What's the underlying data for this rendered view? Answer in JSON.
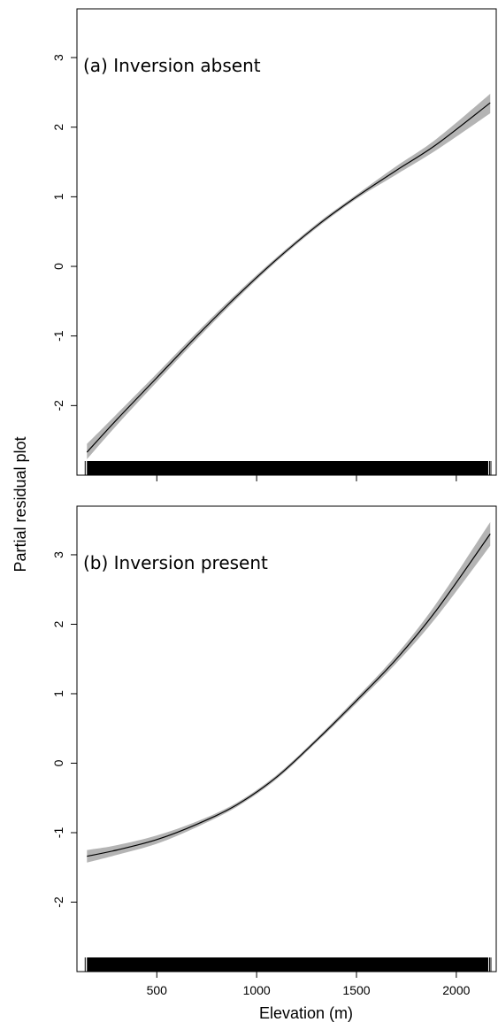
{
  "figure": {
    "ylabel": "Partial residual plot",
    "xlabel": "Elevation (m)"
  },
  "chart_data": [
    {
      "type": "line",
      "panel_label": "(a) Inversion absent",
      "x": [
        150,
        300,
        500,
        700,
        900,
        1100,
        1300,
        1500,
        1700,
        1900,
        2170
      ],
      "y": [
        -2.67,
        -2.2,
        -1.6,
        -1.0,
        -0.43,
        0.1,
        0.58,
        1.0,
        1.38,
        1.75,
        2.35
      ],
      "ci_lower": [
        -2.77,
        -2.28,
        -1.66,
        -1.05,
        -0.47,
        0.07,
        0.55,
        0.97,
        1.32,
        1.67,
        2.2
      ],
      "ci_upper": [
        -2.55,
        -2.12,
        -1.54,
        -0.95,
        -0.39,
        0.13,
        0.61,
        1.03,
        1.44,
        1.83,
        2.48
      ],
      "xlim": [
        100,
        2200
      ],
      "ylim": [
        -3.0,
        3.7
      ],
      "yticks": [
        -2,
        -1,
        0,
        1,
        2,
        3
      ],
      "xticks": [
        500,
        1000,
        1500,
        2000
      ],
      "xtick_labels_shown": false,
      "rug": true,
      "rug_range": [
        150,
        2160
      ]
    },
    {
      "type": "line",
      "panel_label": "(b) Inversion present",
      "x": [
        150,
        300,
        500,
        700,
        900,
        1100,
        1300,
        1500,
        1700,
        1900,
        2170
      ],
      "y": [
        -1.34,
        -1.25,
        -1.1,
        -0.88,
        -0.6,
        -0.2,
        0.33,
        0.9,
        1.5,
        2.2,
        3.3
      ],
      "ci_lower": [
        -1.43,
        -1.32,
        -1.16,
        -0.92,
        -0.63,
        -0.23,
        0.3,
        0.86,
        1.44,
        2.1,
        3.13
      ],
      "ci_upper": [
        -1.25,
        -1.18,
        -1.04,
        -0.84,
        -0.57,
        -0.17,
        0.36,
        0.94,
        1.56,
        2.3,
        3.47
      ],
      "xlim": [
        100,
        2200
      ],
      "ylim": [
        -3.0,
        3.7
      ],
      "yticks": [
        -2,
        -1,
        0,
        1,
        2,
        3
      ],
      "xticks": [
        500,
        1000,
        1500,
        2000
      ],
      "xtick_labels_shown": true,
      "rug": true,
      "rug_range": [
        150,
        2160
      ]
    }
  ],
  "colors": {
    "line": "#000000",
    "ci_band": "#b4b4b4",
    "axis": "#000000",
    "rug": "#000000"
  }
}
